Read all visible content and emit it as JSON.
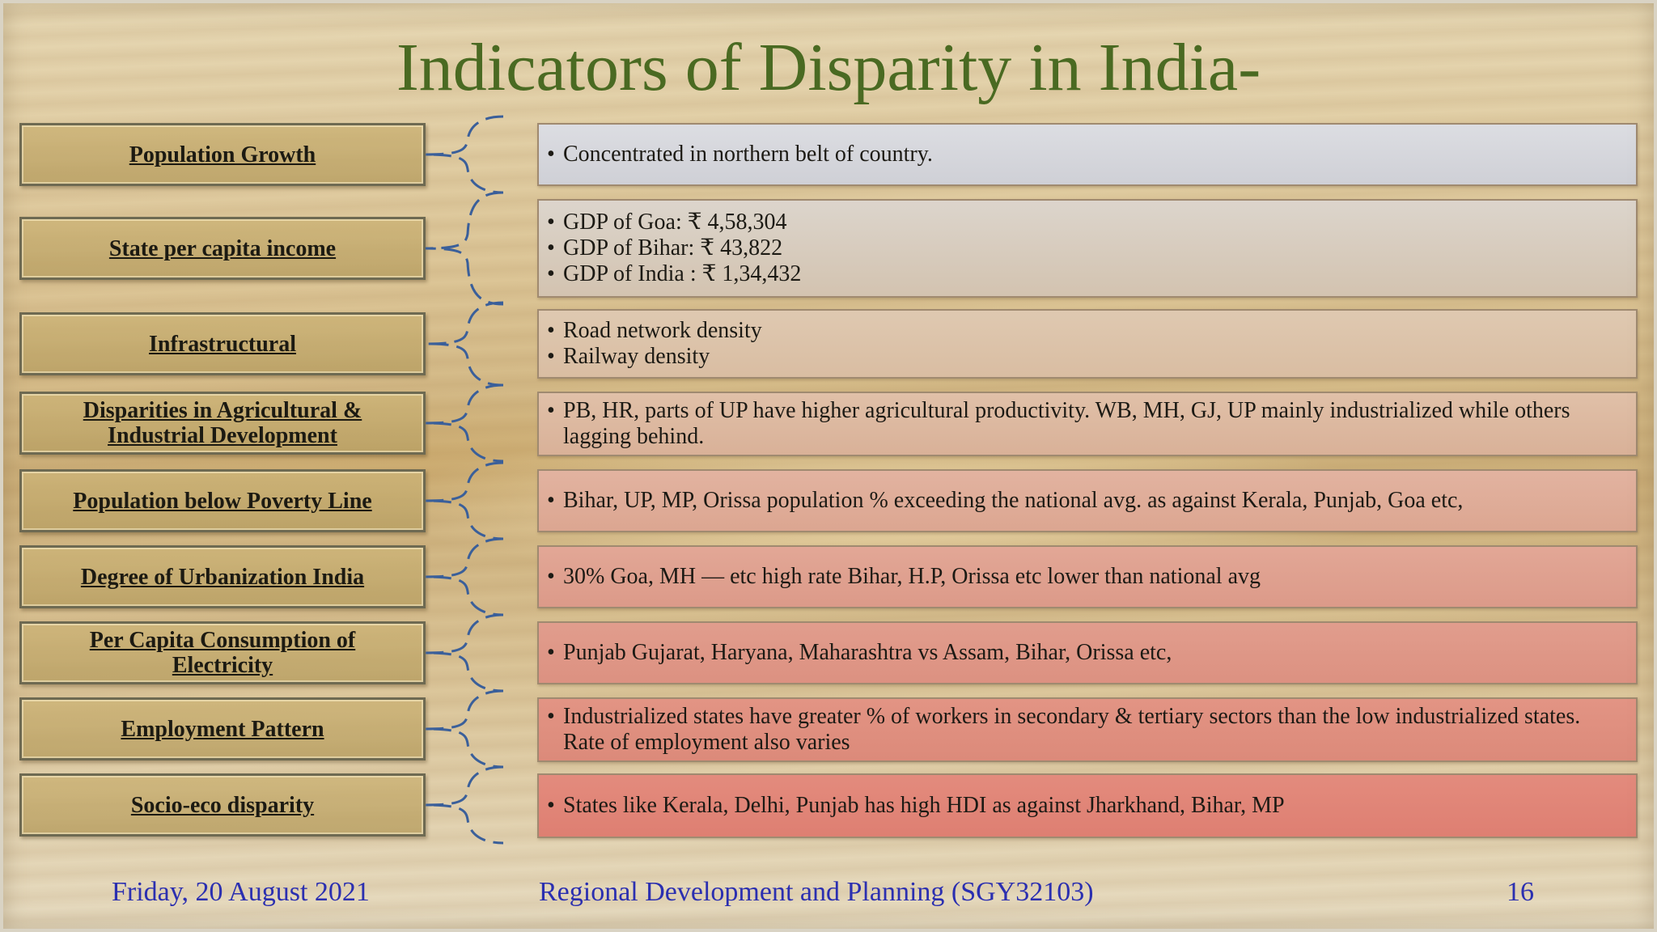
{
  "title": "Indicators of Disparity in India-",
  "rows": [
    {
      "label": "Population Growth",
      "bullets": [
        "Concentrated in northern belt of country."
      ]
    },
    {
      "label": "State per capita income",
      "bullets": [
        "GDP of Goa:   ₹ 4,58,304",
        "GDP of Bihar: ₹ 43,822",
        "GDP of India : ₹ 1,34,432"
      ]
    },
    {
      "label": "Infrastructural",
      "bullets": [
        "Road network density",
        "Railway density"
      ]
    },
    {
      "label": "Disparities in Agricultural & Industrial Development",
      "bullets": [
        "PB, HR, parts of UP have higher agricultural productivity. WB, MH, GJ, UP mainly industrialized while others lagging behind."
      ]
    },
    {
      "label": "Population below Poverty Line",
      "bullets": [
        "Bihar, UP, MP, Orissa population % exceeding the national avg. as against Kerala, Punjab, Goa etc,"
      ]
    },
    {
      "label": "Degree of Urbanization India",
      "bullets": [
        "30% Goa, MH — etc high rate Bihar, H.P, Orissa etc lower than national avg"
      ]
    },
    {
      "label": "Per Capita Consumption of Electricity",
      "bullets": [
        "Punjab Gujarat, Haryana, Maharashtra vs Assam, Bihar, Orissa etc,"
      ]
    },
    {
      "label": "Employment Pattern",
      "bullets": [
        "Industrialized states have greater % of workers in secondary & tertiary sectors than the low industrialized states. Rate of employment also varies"
      ]
    },
    {
      "label": "Socio-eco disparity",
      "bullets": [
        "States like Kerala, Delhi, Punjab has high HDI as against Jharkhand, Bihar, MP"
      ]
    }
  ],
  "footer": {
    "date": "Friday, 20 August 2021",
    "course": "Regional Development and Planning (SGY32103)",
    "page": "16"
  },
  "colors": {
    "title": "#4a6a22",
    "footer_text": "#2b2fb0",
    "brace": "#3a5f9a",
    "right_box_top": "#d8d9dd",
    "right_box_bottom": "#df8585"
  }
}
